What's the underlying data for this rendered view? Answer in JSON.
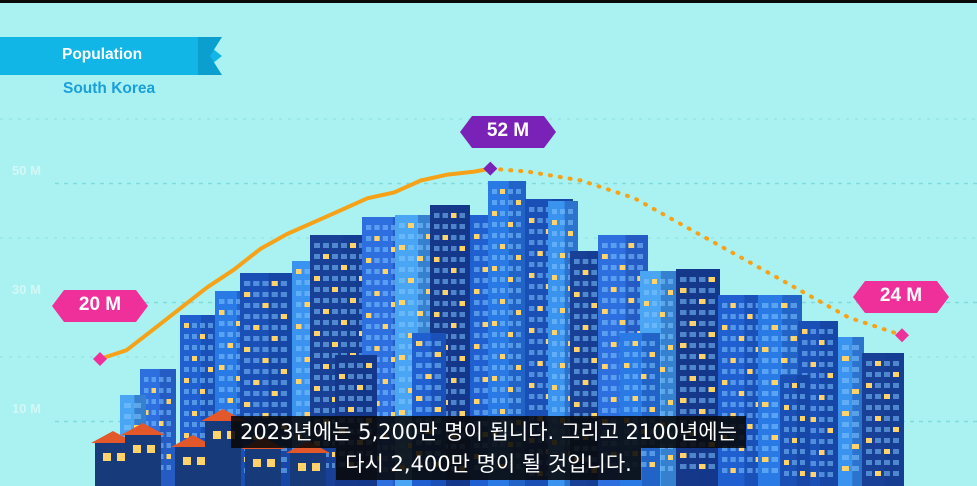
{
  "header": {
    "title": "Population",
    "subtitle": "South Korea"
  },
  "colors": {
    "background": "#a9f2f1",
    "line": "#f5a218",
    "badge_pink": "#f0309a",
    "badge_purple": "#7a22b8",
    "title_tab": "#12b6e6"
  },
  "chart_data": {
    "type": "line",
    "yticks": [
      "10 M",
      "30 M",
      "50 M"
    ],
    "ylim": [
      0,
      65
    ],
    "grid": true,
    "series": [
      {
        "style": "solid",
        "x": [
          1950,
          1955,
          1960,
          1965,
          1970,
          1975,
          1980,
          1985,
          1990,
          1995,
          2000,
          2005,
          2010,
          2015,
          2020,
          2023
        ],
        "values": [
          20,
          21.5,
          25,
          28.5,
          32,
          35,
          38.5,
          41,
          43,
          45,
          47,
          48,
          50,
          51,
          51.5,
          52
        ]
      },
      {
        "style": "dotted",
        "x": [
          2023,
          2030,
          2040,
          2050,
          2060,
          2070,
          2080,
          2090,
          2100
        ],
        "values": [
          52,
          51.5,
          50,
          47,
          42,
          37,
          32,
          27,
          24
        ]
      }
    ],
    "annotations": [
      {
        "label": "20 M",
        "x": 1950,
        "y": 20,
        "color": "pink"
      },
      {
        "label": "52 M",
        "x": 2023,
        "y": 52,
        "color": "purple"
      },
      {
        "label": "24 M",
        "x": 2100,
        "y": 24,
        "color": "pink"
      }
    ]
  },
  "caption": {
    "line1": "2023년에는 5,200만 명이 됩니다.  그리고 2100년에는",
    "line2": "다시 2,400만 명이 될 것입니다."
  }
}
